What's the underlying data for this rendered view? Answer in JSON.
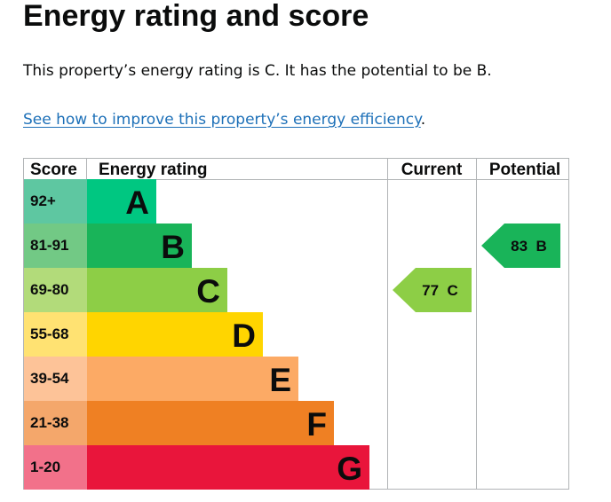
{
  "page": {
    "title": "Energy rating and score",
    "summary": "This property’s energy rating is C. It has the potential to be B.",
    "improve_link": "See how to improve this property’s energy efficiency",
    "improve_suffix": "."
  },
  "chart_data": {
    "type": "bar",
    "headers": {
      "score": "Score",
      "rating": "Energy rating",
      "current": "Current",
      "potential": "Potential"
    },
    "bands": [
      {
        "letter": "A",
        "range": "92+",
        "score_color": "#5ec7a1",
        "bar_color": "#00c781"
      },
      {
        "letter": "B",
        "range": "81-91",
        "score_color": "#72c985",
        "bar_color": "#19b459"
      },
      {
        "letter": "C",
        "range": "69-80",
        "score_color": "#b2db7a",
        "bar_color": "#8dce46"
      },
      {
        "letter": "D",
        "range": "55-68",
        "score_color": "#ffe272",
        "bar_color": "#ffd500"
      },
      {
        "letter": "E",
        "range": "39-54",
        "score_color": "#fdc398",
        "bar_color": "#fcaa65"
      },
      {
        "letter": "F",
        "range": "21-38",
        "score_color": "#f4a76b",
        "bar_color": "#ef8023"
      },
      {
        "letter": "G",
        "range": "1-20",
        "score_color": "#f2718a",
        "bar_color": "#e9153b"
      }
    ],
    "current": {
      "score": 77,
      "letter": "C",
      "label": "77  C",
      "color": "#8dce46"
    },
    "potential": {
      "score": 83,
      "letter": "B",
      "label": "83  B",
      "color": "#19b459"
    }
  }
}
